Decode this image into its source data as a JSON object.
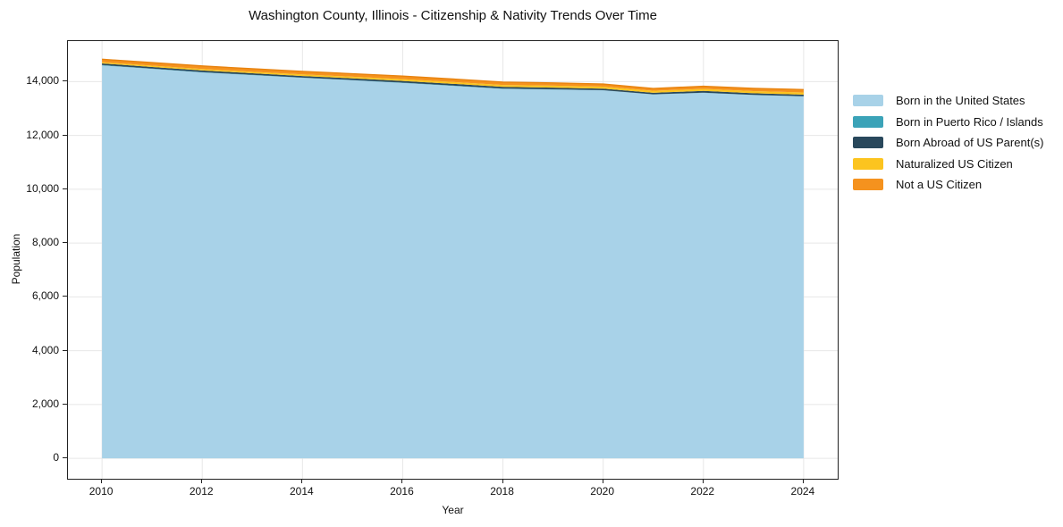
{
  "title": "Washington County, Illinois - Citizenship & Nativity Trends Over Time",
  "axes": {
    "x_label": "Year",
    "y_label": "Population",
    "x_ticks": [
      {
        "value": 2010,
        "label": "2010"
      },
      {
        "value": 2012,
        "label": "2012"
      },
      {
        "value": 2014,
        "label": "2014"
      },
      {
        "value": 2016,
        "label": "2016"
      },
      {
        "value": 2018,
        "label": "2018"
      },
      {
        "value": 2020,
        "label": "2020"
      },
      {
        "value": 2022,
        "label": "2022"
      },
      {
        "value": 2024,
        "label": "2024"
      }
    ],
    "y_ticks": [
      {
        "value": 0,
        "label": "0"
      },
      {
        "value": 2000,
        "label": "2,000"
      },
      {
        "value": 4000,
        "label": "4,000"
      },
      {
        "value": 6000,
        "label": "6,000"
      },
      {
        "value": 8000,
        "label": "8,000"
      },
      {
        "value": 10000,
        "label": "10,000"
      },
      {
        "value": 12000,
        "label": "12,000"
      },
      {
        "value": 14000,
        "label": "14,000"
      }
    ]
  },
  "legend": {
    "items": [
      {
        "label": "Born in the United States",
        "color": "#a8d2e8"
      },
      {
        "label": "Born in Puerto Rico / Islands",
        "color": "#3ba3b8"
      },
      {
        "label": "Born Abroad of US Parent(s)",
        "color": "#29485c"
      },
      {
        "label": "Naturalized US Citizen",
        "color": "#fcc41f"
      },
      {
        "label": "Not a US Citizen",
        "color": "#f5921e"
      }
    ]
  },
  "chart_data": {
    "type": "area",
    "stacked": true,
    "title": "Washington County, Illinois - Citizenship & Nativity Trends Over Time",
    "xlabel": "Year",
    "ylabel": "Population",
    "x": [
      2010,
      2011,
      2012,
      2013,
      2014,
      2015,
      2016,
      2017,
      2018,
      2019,
      2020,
      2021,
      2022,
      2023,
      2024
    ],
    "series": [
      {
        "name": "Born in the United States",
        "color": "#a8d2e8",
        "values": [
          14600,
          14470,
          14340,
          14240,
          14140,
          14050,
          13950,
          13840,
          13730,
          13705,
          13675,
          13520,
          13580,
          13500,
          13450
        ]
      },
      {
        "name": "Born in Puerto Rico / Islands",
        "color": "#3ba3b8",
        "values": [
          15,
          14,
          12,
          10,
          10,
          8,
          10,
          12,
          10,
          8,
          6,
          5,
          8,
          6,
          5
        ]
      },
      {
        "name": "Born Abroad of US Parent(s)",
        "color": "#29485c",
        "values": [
          60,
          60,
          62,
          60,
          58,
          60,
          62,
          65,
          62,
          60,
          55,
          60,
          65,
          62,
          60
        ]
      },
      {
        "name": "Naturalized US Citizen",
        "color": "#fcc41f",
        "values": [
          45,
          48,
          52,
          55,
          60,
          62,
          68,
          70,
          72,
          75,
          78,
          72,
          76,
          78,
          80
        ]
      },
      {
        "name": "Not a US Citizen",
        "color": "#f5921e",
        "values": [
          110,
          112,
          114,
          112,
          110,
          112,
          114,
          110,
          106,
          102,
          96,
          88,
          96,
          100,
          108
        ]
      }
    ],
    "xlim": [
      2009.32,
      2024.68
    ],
    "ylim": [
      -760,
      15505
    ],
    "grid": true,
    "legend_position": "right"
  }
}
